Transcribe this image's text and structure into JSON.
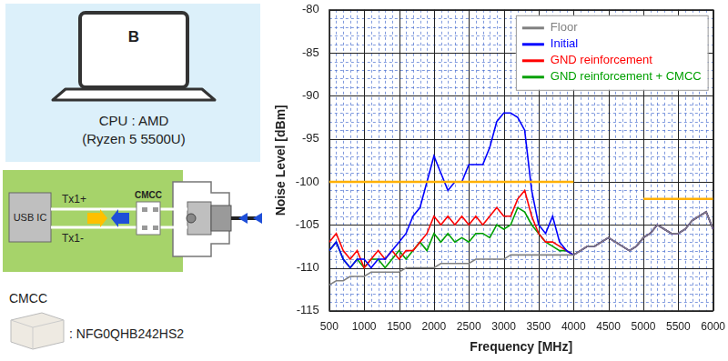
{
  "diagram": {
    "laptop_label": "B",
    "cpu": [
      "CPU : AMD",
      "(Ryzen 5 5500U)"
    ],
    "board": {
      "ic": "USB IC",
      "lines": [
        "Tx1+",
        "Tx1-"
      ],
      "filter": "CMCC"
    },
    "component": {
      "title": "CMCC",
      "part": ": NFG0QHB242HS2"
    }
  },
  "chart_data": {
    "type": "line",
    "x_label": "Frequency [MHz]",
    "y_label": "Noise Level [dBm]",
    "x": [
      500,
      600,
      700,
      800,
      900,
      1000,
      1100,
      1200,
      1300,
      1400,
      1500,
      1600,
      1700,
      1800,
      1900,
      2000,
      2100,
      2200,
      2300,
      2400,
      2500,
      2600,
      2700,
      2800,
      2900,
      3000,
      3100,
      3200,
      3300,
      3400,
      3500,
      3600,
      3700,
      3800,
      3900,
      4000,
      4100,
      4200,
      4300,
      4400,
      4500,
      4600,
      4700,
      4800,
      4900,
      5000,
      5100,
      5200,
      5300,
      5400,
      5500,
      5600,
      5700,
      5800,
      5900,
      6000
    ],
    "series": [
      {
        "name": "Floor",
        "color": "#808080",
        "values": [
          -112,
          -111.5,
          -111.5,
          -111,
          -111,
          -111,
          -110.5,
          -110.5,
          -110.5,
          -110.5,
          -110.5,
          -110,
          -110,
          -110,
          -110,
          -110,
          -109.5,
          -109.5,
          -109.5,
          -109.5,
          -109.5,
          -109,
          -109,
          -109,
          -109,
          -109,
          -108.5,
          -108.5,
          -108.5,
          -108.5,
          -108.5,
          -108.5,
          -108.5,
          -108.5,
          -108.5,
          -108.5,
          -108,
          -107.5,
          -107.5,
          -107,
          -106.5,
          -107,
          -107.5,
          -108,
          -107.5,
          -106.5,
          -106,
          -105,
          -105.5,
          -106,
          -106,
          -105.5,
          -104.5,
          -104,
          -103.5,
          -105.5
        ]
      },
      {
        "name": "Initial",
        "color": "#0000ff",
        "values": [
          -108,
          -107,
          -109,
          -110,
          -109,
          -109,
          -110,
          -109,
          -109,
          -108,
          -107,
          -106,
          -104,
          -103,
          -100,
          -97,
          -99,
          -101,
          -100,
          -100,
          -98,
          -98,
          -98,
          -96,
          -93,
          -92,
          -92,
          -92.5,
          -94,
          -101,
          -105,
          -106,
          -104,
          -107,
          -108,
          -108.5,
          -108,
          -107.5,
          -107.5,
          -107,
          -106.5,
          -107,
          -107.5,
          -108,
          -107.5,
          -106.5,
          -106,
          -105,
          -105.5,
          -106,
          -106,
          -105.5,
          -104.5,
          -104,
          -103.5,
          -105.5
        ]
      },
      {
        "name": "GND reinforcement",
        "color": "#ff0000",
        "values": [
          -107,
          -106,
          -108,
          -109,
          -108,
          -110,
          -109,
          -108,
          -109,
          -108,
          -109,
          -108,
          -108,
          -107,
          -106,
          -104,
          -105,
          -104,
          -105,
          -104,
          -105,
          -104,
          -105,
          -104,
          -103,
          -104,
          -104,
          -102,
          -101,
          -104,
          -106,
          -107,
          -107,
          -107.5,
          -108,
          -108.5,
          -108,
          -107.5,
          -107.5,
          -107,
          -106.5,
          -107,
          -107.5,
          -108,
          -107.5,
          -106.5,
          -106,
          -105,
          -105.5,
          -106,
          -106,
          -105.5,
          -104.5,
          -104,
          -103.5,
          -105.5
        ]
      },
      {
        "name": "GND reinforcement + CMCC",
        "color": "#00a000",
        "values": [
          -108,
          -107,
          -109,
          -110,
          -109,
          -110,
          -109,
          -109,
          -110,
          -109,
          -108,
          -109,
          -108,
          -107,
          -108,
          -106,
          -107,
          -106,
          -107,
          -106.5,
          -107,
          -106,
          -106,
          -106.5,
          -105,
          -105.5,
          -105,
          -103,
          -103.5,
          -105,
          -106,
          -107,
          -107.5,
          -108,
          -108,
          -108.5,
          -108,
          -107.5,
          -107.5,
          -107,
          -106.5,
          -107,
          -107.5,
          -108,
          -107.5,
          -106.5,
          -106,
          -105,
          -105.5,
          -106,
          -106,
          -105.5,
          -104.5,
          -104,
          -103.5,
          -105.5
        ]
      }
    ],
    "limits": [
      {
        "x": [
          500,
          4000
        ],
        "y": -100,
        "color": "#ffb000"
      },
      {
        "x": [
          5000,
          6000
        ],
        "y": -102,
        "color": "#ffb000"
      }
    ],
    "xlim": [
      500,
      6000
    ],
    "xticks": [
      500,
      1000,
      1500,
      2000,
      2500,
      3000,
      3500,
      4000,
      4500,
      5000,
      5500,
      6000
    ],
    "ylim": [
      -115,
      -80
    ],
    "yticks": [
      -115,
      -110,
      -105,
      -100,
      -95,
      -90,
      -85,
      -80
    ],
    "grid": true,
    "legend": "upper right"
  }
}
